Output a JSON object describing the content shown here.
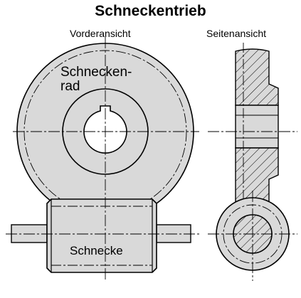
{
  "title": "Schneckentrieb",
  "captions": {
    "front": "Vorderansicht",
    "side": "Seitenansicht"
  },
  "labels": {
    "wheel_line1": "Schnecken-",
    "wheel_line2": "rad",
    "worm": "Schnecke"
  },
  "colors": {
    "fill": "#d9d9d9",
    "stroke": "#000000",
    "background": "#ffffff"
  }
}
